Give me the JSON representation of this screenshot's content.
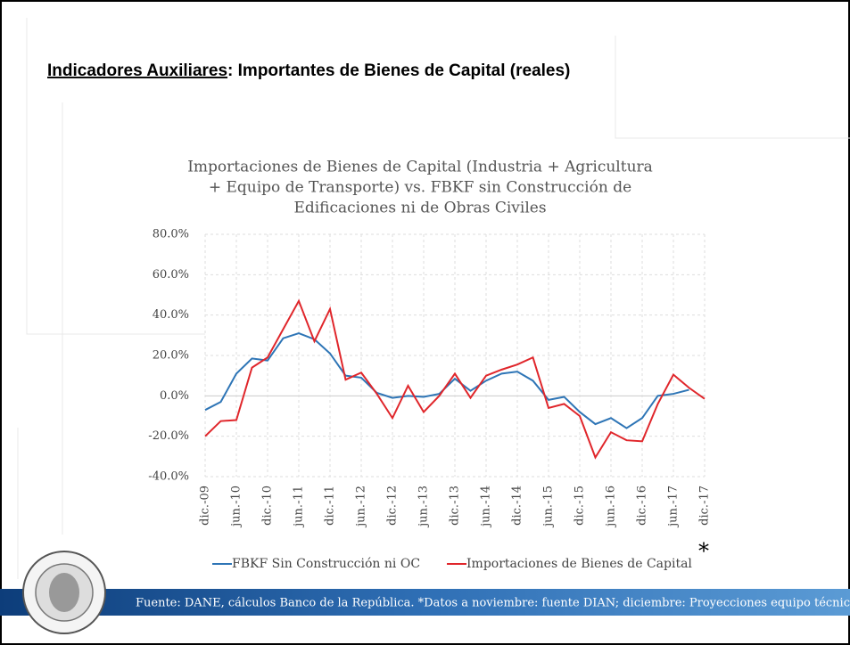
{
  "slide": {
    "title_underlined": "Indicadores Auxiliares",
    "title_rest": ": Importantes de Bienes de Capital (reales)",
    "asterisk": "*",
    "footer": "Fuente: DANE, cálculos Banco de la República. *Datos a noviembre: fuente DIAN; diciembre: Proyecciones equipo técnico"
  },
  "chart_data": {
    "type": "line",
    "title": [
      "Importaciones de Bienes de Capital (Industria + Agricultura",
      "+ Equipo de Transporte) vs. FBKF sin Construcción de",
      "Edificaciones ni de Obras Civiles"
    ],
    "categories": [
      "dic.-09",
      null,
      "jun.-10",
      null,
      "dic.-10",
      null,
      "jun.-11",
      null,
      "dic.-11",
      null,
      "jun.-12",
      null,
      "dic.-12",
      null,
      "jun.-13",
      null,
      "dic.-13",
      null,
      "jun.-14",
      null,
      "dic.-14",
      null,
      "jun.-15",
      null,
      "dic.-15",
      null,
      "jun.-16",
      null,
      "dic.-16",
      null,
      "jun.-17",
      null,
      "dic.-17"
    ],
    "series": [
      {
        "name": "FBKF Sin Construcción ni OC",
        "color": "#2e75b6",
        "values": [
          -7,
          -3,
          11,
          18.5,
          17.5,
          28.5,
          31,
          28,
          21,
          10,
          9,
          1.5,
          -1,
          0,
          -0.5,
          1,
          8.5,
          2.5,
          7.5,
          11,
          12,
          7.5,
          -2,
          -0.5,
          -8,
          -14,
          -11,
          -16,
          -11,
          0,
          1,
          3,
          null
        ]
      },
      {
        "name": "Importaciones de Bienes de Capital",
        "color": "#e0262b",
        "values": [
          -20,
          -12.5,
          -12,
          14,
          19,
          33,
          47,
          27,
          43,
          8,
          11.5,
          1,
          -11,
          5,
          -8,
          0,
          11,
          -1,
          10,
          13,
          15.5,
          19,
          -6,
          -4,
          -10,
          -30.5,
          -18,
          -22,
          -22.5,
          -4,
          10.5,
          4,
          -1.5
        ]
      }
    ],
    "ylim": [
      -40,
      80
    ],
    "yticks": [
      {
        "value": -40,
        "label": "-40.0%"
      },
      {
        "value": -20,
        "label": "-20.0%"
      },
      {
        "value": 0,
        "label": "0.0%"
      },
      {
        "value": 20,
        "label": "20.0%"
      },
      {
        "value": 40,
        "label": "40.0%"
      },
      {
        "value": 60,
        "label": "60.0%"
      },
      {
        "value": 80,
        "label": "80.0%"
      }
    ],
    "grid": true,
    "legend": "bottom"
  }
}
